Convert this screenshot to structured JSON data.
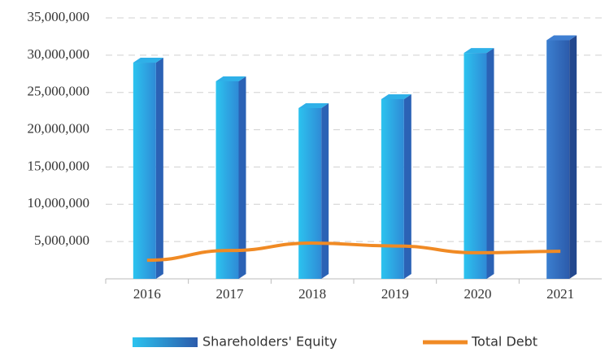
{
  "chart_data": {
    "type": "bar",
    "categories": [
      "2016",
      "2017",
      "2018",
      "2019",
      "2020",
      "2021"
    ],
    "series": [
      {
        "name": "Shareholders' Equity",
        "type": "bar",
        "color": "#2a8fd8",
        "values": [
          29000000,
          26500000,
          22900000,
          24100000,
          30300000,
          32000000
        ]
      },
      {
        "name": "Total Debt",
        "type": "line",
        "color": "#f08a24",
        "values": [
          2500000,
          3800000,
          4800000,
          4400000,
          3500000,
          3700000
        ]
      }
    ],
    "ylim": [
      0,
      35000000
    ],
    "yticks": [
      {
        "value": 5000000,
        "label": "5,000,000"
      },
      {
        "value": 10000000,
        "label": "10,000,000"
      },
      {
        "value": 15000000,
        "label": "15,000,000"
      },
      {
        "value": 20000000,
        "label": "20,000,000"
      },
      {
        "value": 25000000,
        "label": "25,000,000"
      },
      {
        "value": 30000000,
        "label": "30,000,000"
      },
      {
        "value": 35000000,
        "label": "35,000,000"
      }
    ],
    "grid": true,
    "legend": "bottom"
  }
}
